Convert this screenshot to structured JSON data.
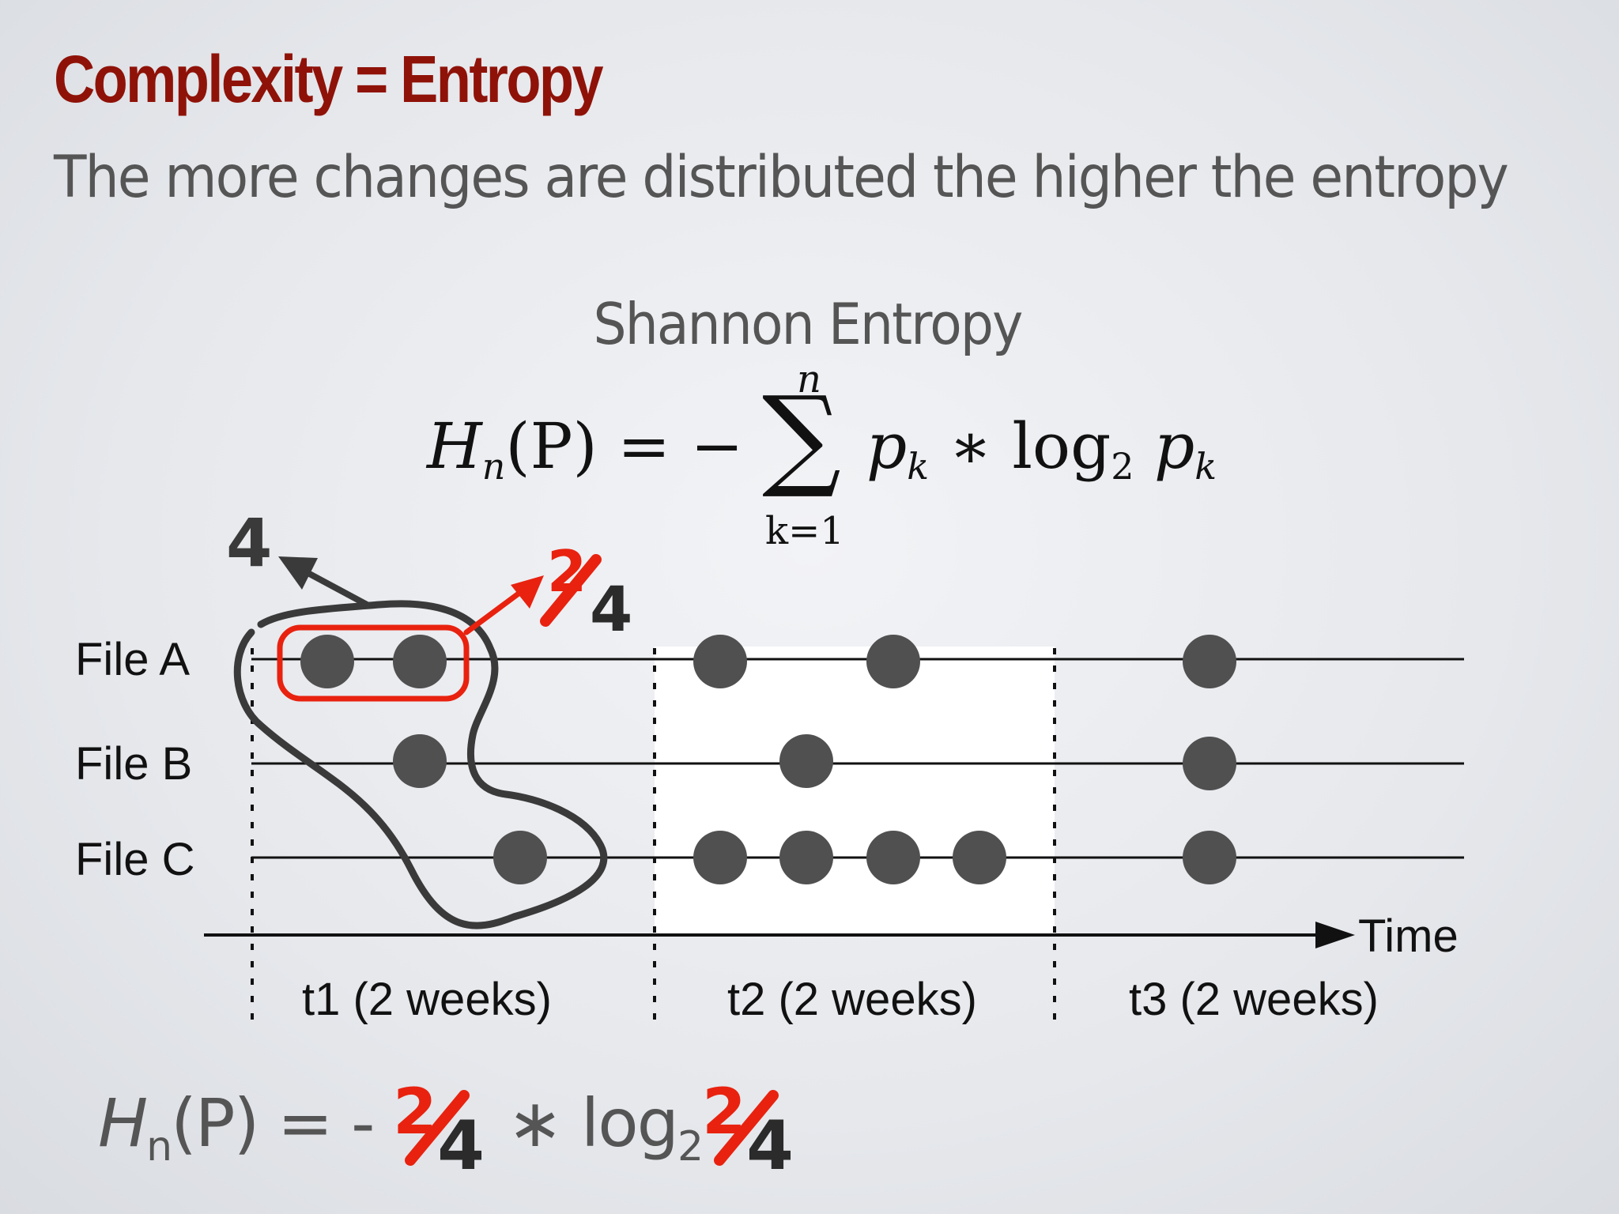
{
  "slide": {
    "title": "Complexity = Entropy",
    "subtitle": "The more changes are distributed the higher the entropy",
    "section_title": "Shannon Entropy"
  },
  "formula": {
    "lhs": "H",
    "lhs_sub": "n",
    "lhs_arg": "(P) = −",
    "sum_top": "n",
    "sum_bottom": "k=1",
    "rhs_p": "p",
    "rhs_p_sub": "k",
    "rhs_mid": " ∗ log",
    "rhs_log_base": "2",
    "rhs_p2": "p",
    "rhs_p2_sub": "k"
  },
  "diagram": {
    "files": [
      "File A",
      "File B",
      "File C"
    ],
    "periods": [
      "t1 (2 weeks)",
      "t2 (2 weeks)",
      "t3 (2 weeks)"
    ],
    "axis_label": "Time",
    "annotation_total": "4",
    "annotation_fraction": {
      "numerator": "2",
      "denominator": "4"
    },
    "changes": [
      {
        "file": "File A",
        "period": "t1 (2 weeks)",
        "count": 2
      },
      {
        "file": "File B",
        "period": "t1 (2 weeks)",
        "count": 1
      },
      {
        "file": "File C",
        "period": "t1 (2 weeks)",
        "count": 1
      },
      {
        "file": "File A",
        "period": "t2 (2 weeks)",
        "count": 2
      },
      {
        "file": "File B",
        "period": "t2 (2 weeks)",
        "count": 1
      },
      {
        "file": "File C",
        "period": "t2 (2 weeks)",
        "count": 4
      },
      {
        "file": "File A",
        "period": "t3 (2 weeks)",
        "count": 1
      },
      {
        "file": "File B",
        "period": "t3 (2 weeks)",
        "count": 1
      },
      {
        "file": "File C",
        "period": "t3 (2 weeks)",
        "count": 1
      }
    ],
    "colors": {
      "dot": "#505050",
      "highlight": "#e8220f",
      "lasso": "#3a3a3a",
      "t2_background": "#ffffff"
    }
  },
  "bottom_formula": {
    "lhs": "H",
    "lhs_sub": "n",
    "lhs_rest": "(P) = -",
    "fraction": {
      "numerator": "2",
      "denominator": "4"
    },
    "mid": "∗ log",
    "log_base": "2"
  }
}
